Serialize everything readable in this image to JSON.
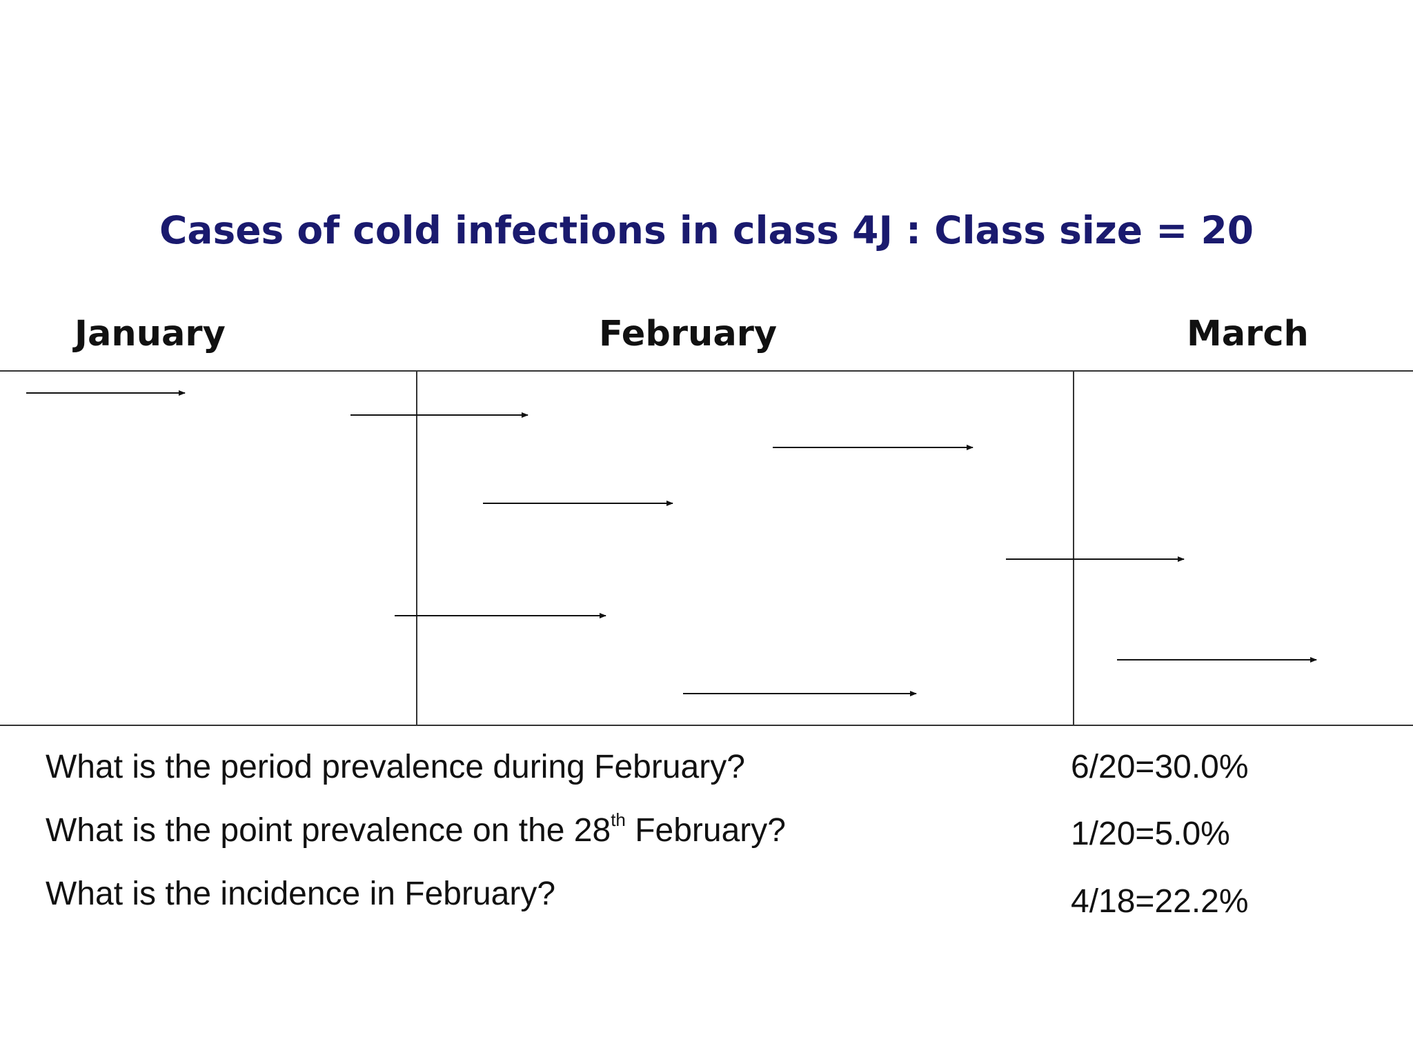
{
  "title": "Cases of cold infections in class 4J : Class size = 20",
  "months": [
    {
      "label": "January"
    },
    {
      "label": "February"
    },
    {
      "label": "March"
    }
  ],
  "cases": [
    {
      "start": "Jan",
      "end": "Jan"
    },
    {
      "start": "Jan",
      "end": "Feb"
    },
    {
      "start": "Feb",
      "end": "Feb"
    },
    {
      "start": "Feb",
      "end": "Feb"
    },
    {
      "start": "Feb",
      "end": "Mar"
    },
    {
      "start": "Jan",
      "end": "Feb"
    },
    {
      "start": "Mar",
      "end": "Mar"
    },
    {
      "start": "Feb",
      "end": "Feb"
    }
  ],
  "questions": [
    {
      "text": "What is the period prevalence during February?",
      "answer": "6/20=30.0%"
    },
    {
      "text_before": "What is the point prevalence on the 28",
      "text_sup": "th",
      "text_after": " February?",
      "answer": "1/20=5.0%"
    },
    {
      "text": "What is the incidence in February?",
      "answer": "4/18=22.2%"
    }
  ]
}
